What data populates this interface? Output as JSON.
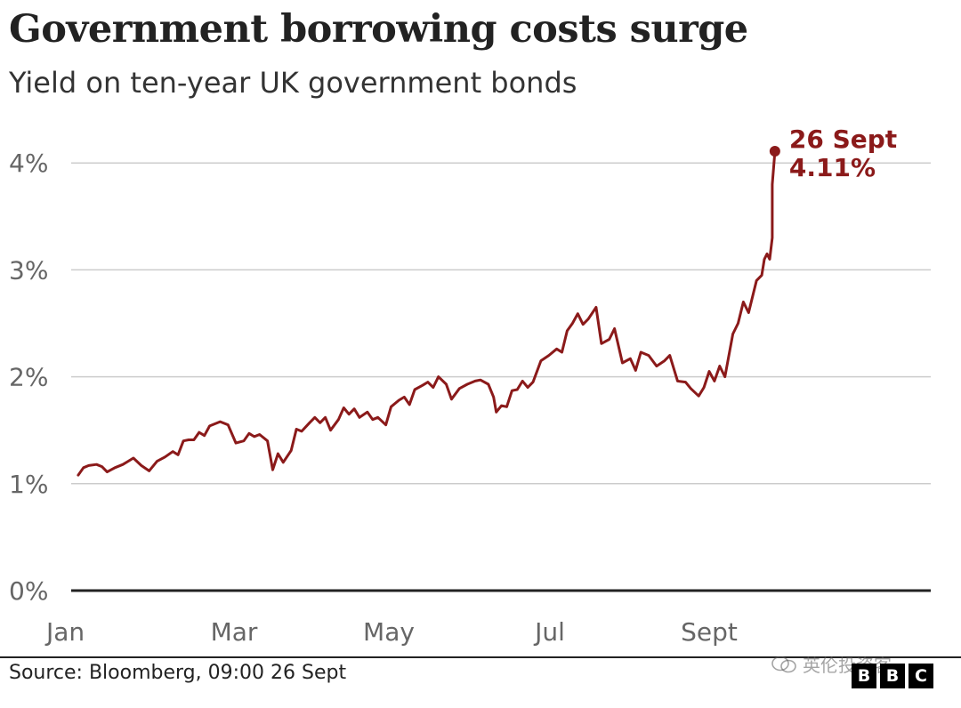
{
  "header": {
    "title": "Government borrowing costs surge",
    "subtitle": "Yield on ten-year UK government bonds"
  },
  "footer": {
    "source": "Source: Bloomberg, 09:00 26 Sept",
    "watermark": "英伦投资客",
    "logo_letters": [
      "B",
      "B",
      "C"
    ]
  },
  "colors": {
    "series": "#8b1a1a",
    "grid": "#cccccc",
    "baseline": "#222222",
    "axis_text": "#666666"
  },
  "chart_data": {
    "type": "line",
    "title": "Government borrowing costs surge",
    "subtitle": "Yield on ten-year UK government bonds",
    "xlabel": "",
    "ylabel": "",
    "x_ticks": [
      "Jan",
      "Mar",
      "May",
      "Jul",
      "Sept"
    ],
    "y_ticks": [
      "0%",
      "1%",
      "2%",
      "3%",
      "4%"
    ],
    "ylim": [
      0,
      4.5
    ],
    "grid": true,
    "legend": "none",
    "annotation": {
      "date": "26 Sept",
      "value": "4.11%"
    },
    "series": [
      {
        "name": "",
        "points": [
          [
            "2022-01-04",
            1.08
          ],
          [
            "2022-01-06",
            1.15
          ],
          [
            "2022-01-08",
            1.17
          ],
          [
            "2022-01-11",
            1.18
          ],
          [
            "2022-01-13",
            1.16
          ],
          [
            "2022-01-15",
            1.11
          ],
          [
            "2022-01-18",
            1.15
          ],
          [
            "2022-01-21",
            1.18
          ],
          [
            "2022-01-23",
            1.21
          ],
          [
            "2022-01-25",
            1.24
          ],
          [
            "2022-01-28",
            1.17
          ],
          [
            "2022-01-31",
            1.12
          ],
          [
            "2022-02-03",
            1.21
          ],
          [
            "2022-02-06",
            1.25
          ],
          [
            "2022-02-09",
            1.3
          ],
          [
            "2022-02-11",
            1.27
          ],
          [
            "2022-02-13",
            1.4
          ],
          [
            "2022-02-15",
            1.41
          ],
          [
            "2022-02-17",
            1.41
          ],
          [
            "2022-02-19",
            1.48
          ],
          [
            "2022-02-21",
            1.45
          ],
          [
            "2022-02-23",
            1.54
          ],
          [
            "2022-02-27",
            1.58
          ],
          [
            "2022-03-02",
            1.55
          ],
          [
            "2022-03-05",
            1.38
          ],
          [
            "2022-03-08",
            1.4
          ],
          [
            "2022-03-10",
            1.47
          ],
          [
            "2022-03-12",
            1.44
          ],
          [
            "2022-03-14",
            1.46
          ],
          [
            "2022-03-17",
            1.4
          ],
          [
            "2022-03-19",
            1.13
          ],
          [
            "2022-03-21",
            1.28
          ],
          [
            "2022-03-23",
            1.2
          ],
          [
            "2022-03-26",
            1.31
          ],
          [
            "2022-03-28",
            1.51
          ],
          [
            "2022-03-30",
            1.49
          ],
          [
            "2022-04-02",
            1.57
          ],
          [
            "2022-04-04",
            1.62
          ],
          [
            "2022-04-06",
            1.57
          ],
          [
            "2022-04-08",
            1.62
          ],
          [
            "2022-04-10",
            1.5
          ],
          [
            "2022-04-13",
            1.6
          ],
          [
            "2022-04-15",
            1.71
          ],
          [
            "2022-04-17",
            1.65
          ],
          [
            "2022-04-19",
            1.7
          ],
          [
            "2022-04-21",
            1.62
          ],
          [
            "2022-04-24",
            1.67
          ],
          [
            "2022-04-26",
            1.6
          ],
          [
            "2022-04-28",
            1.62
          ],
          [
            "2022-05-01",
            1.55
          ],
          [
            "2022-05-03",
            1.72
          ],
          [
            "2022-05-06",
            1.78
          ],
          [
            "2022-05-08",
            1.81
          ],
          [
            "2022-05-10",
            1.74
          ],
          [
            "2022-05-12",
            1.88
          ],
          [
            "2022-05-15",
            1.92
          ],
          [
            "2022-05-17",
            1.95
          ],
          [
            "2022-05-19",
            1.9
          ],
          [
            "2022-05-21",
            2.0
          ],
          [
            "2022-05-24",
            1.93
          ],
          [
            "2022-05-26",
            1.79
          ],
          [
            "2022-05-29",
            1.89
          ],
          [
            "2022-06-01",
            1.93
          ],
          [
            "2022-06-04",
            1.96
          ],
          [
            "2022-06-06",
            1.97
          ],
          [
            "2022-06-09",
            1.93
          ],
          [
            "2022-06-11",
            1.81
          ],
          [
            "2022-06-12",
            1.67
          ],
          [
            "2022-06-14",
            1.73
          ],
          [
            "2022-06-16",
            1.72
          ],
          [
            "2022-06-18",
            1.87
          ],
          [
            "2022-06-20",
            1.88
          ],
          [
            "2022-06-22",
            1.96
          ],
          [
            "2022-06-24",
            1.9
          ],
          [
            "2022-06-26",
            1.95
          ],
          [
            "2022-06-29",
            2.15
          ],
          [
            "2022-07-02",
            2.2
          ],
          [
            "2022-07-05",
            2.26
          ],
          [
            "2022-07-07",
            2.23
          ],
          [
            "2022-07-09",
            2.43
          ],
          [
            "2022-07-11",
            2.5
          ],
          [
            "2022-07-13",
            2.59
          ],
          [
            "2022-07-15",
            2.49
          ],
          [
            "2022-07-17",
            2.54
          ],
          [
            "2022-07-20",
            2.65
          ],
          [
            "2022-07-22",
            2.31
          ],
          [
            "2022-07-25",
            2.35
          ],
          [
            "2022-07-27",
            2.45
          ],
          [
            "2022-07-30",
            2.13
          ],
          [
            "2022-08-02",
            2.17
          ],
          [
            "2022-08-04",
            2.06
          ],
          [
            "2022-08-06",
            2.23
          ],
          [
            "2022-08-09",
            2.2
          ],
          [
            "2022-08-12",
            2.1
          ],
          [
            "2022-08-15",
            2.15
          ],
          [
            "2022-08-17",
            2.2
          ],
          [
            "2022-08-20",
            1.96
          ],
          [
            "2022-08-23",
            1.95
          ],
          [
            "2022-08-25",
            1.89
          ],
          [
            "2022-08-28",
            1.82
          ],
          [
            "2022-08-30",
            1.9
          ],
          [
            "2022-09-01",
            2.05
          ],
          [
            "2022-09-03",
            1.96
          ],
          [
            "2022-09-05",
            2.1
          ],
          [
            "2022-09-07",
            2.0
          ],
          [
            "2022-09-10",
            2.4
          ],
          [
            "2022-09-12",
            2.5
          ],
          [
            "2022-09-14",
            2.7
          ],
          [
            "2022-09-16",
            2.6
          ],
          [
            "2022-09-19",
            2.9
          ],
          [
            "2022-09-21",
            2.95
          ],
          [
            "2022-09-22",
            3.1
          ],
          [
            "2022-09-23",
            3.15
          ],
          [
            "2022-09-24",
            3.1
          ],
          [
            "2022-09-25",
            3.3
          ],
          [
            "2022-09-25",
            3.8
          ],
          [
            "2022-09-26",
            4.11
          ]
        ]
      }
    ]
  }
}
